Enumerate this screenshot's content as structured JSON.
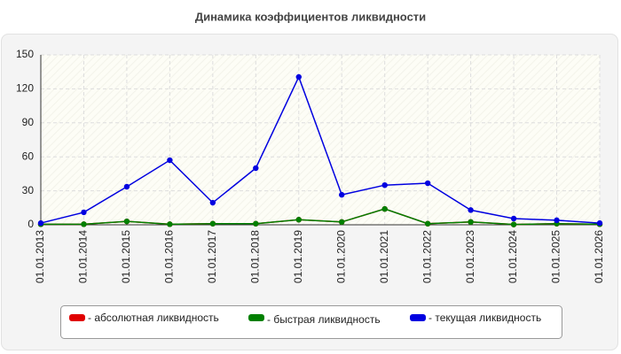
{
  "chart_data": {
    "type": "line",
    "title": "Динамика коэффициентов ликвидности",
    "categories": [
      "01.01.2013",
      "01.01.2014",
      "01.01.2015",
      "01.01.2016",
      "01.01.2017",
      "01.01.2018",
      "01.01.2019",
      "01.01.2020",
      "01.01.2021",
      "01.01.2022",
      "01.01.2023",
      "01.01.2024",
      "01.01.2025",
      "01.01.2026"
    ],
    "series": [
      {
        "name": "- абсолютная ликвидность",
        "color": "#e00000",
        "values": [
          0.5,
          0.5,
          3,
          0.5,
          1,
          1,
          4.5,
          2.5,
          14,
          1,
          2.5,
          0.3,
          1,
          0.5
        ]
      },
      {
        "name": "- быстрая ликвидность",
        "color": "#008000",
        "values": [
          0.5,
          0.5,
          3,
          0.5,
          1,
          1,
          4.5,
          2.5,
          14,
          1,
          2.5,
          0.3,
          1,
          0.5
        ]
      },
      {
        "name": "- текущая ликвидность",
        "color": "#0000e0",
        "values": [
          1.5,
          11,
          33.6,
          57,
          19.5,
          50,
          130.5,
          26.5,
          35,
          36.7,
          13,
          5.5,
          4,
          1.5
        ]
      }
    ],
    "ylim": [
      0,
      150
    ],
    "yticks": [
      0,
      30,
      60,
      90,
      120,
      150
    ],
    "grid": true
  }
}
